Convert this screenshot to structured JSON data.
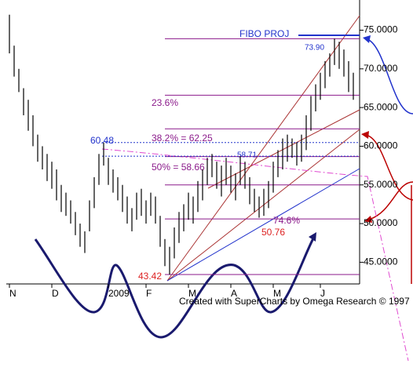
{
  "chart_data": {
    "type": "ohlc",
    "categories": [
      "N",
      null,
      null,
      null,
      null,
      null,
      null,
      null,
      null,
      "D",
      null,
      null,
      null,
      null,
      null,
      null,
      null,
      null,
      null,
      null,
      null,
      "2009",
      null,
      null,
      null,
      null,
      null,
      null,
      null,
      "F",
      null,
      null,
      null,
      null,
      null,
      null,
      null,
      null,
      "M",
      null,
      null,
      null,
      null,
      null,
      null,
      null,
      null,
      "A",
      null,
      null,
      null,
      null,
      null,
      null,
      null,
      null,
      "M",
      null,
      null,
      null,
      null,
      null,
      null,
      null,
      null,
      null,
      "J",
      null,
      null,
      null,
      null,
      null,
      null,
      null
    ],
    "high": [
      77,
      73,
      70,
      67.5,
      66,
      64,
      61.5,
      60,
      59,
      58,
      57,
      55,
      54,
      53,
      51.5,
      50,
      49,
      53,
      56,
      59,
      60.48,
      58.5,
      57,
      56,
      55,
      53.5,
      52,
      54,
      54.5,
      53,
      54,
      53.5,
      51,
      48,
      47,
      49.5,
      51.5,
      52.5,
      54,
      53.5,
      55.5,
      57,
      58.5,
      59,
      58,
      57.5,
      58.5,
      57.5,
      56.5,
      58.71,
      58,
      56,
      54.5,
      53.5,
      54.5,
      55.5,
      58,
      59.5,
      61,
      61.5,
      61,
      60.5,
      61.5,
      64,
      66.5,
      68,
      69.5,
      71,
      72,
      73.9,
      73.5,
      72.5,
      71,
      69.5
    ],
    "low": [
      72,
      69,
      67,
      64,
      62,
      60,
      58,
      57,
      55.5,
      54.5,
      53,
      51.5,
      51,
      50,
      48.5,
      47,
      46.2,
      49,
      52,
      55,
      57.5,
      55,
      54,
      53,
      51.5,
      50,
      49,
      50.5,
      51,
      50,
      51,
      50,
      47,
      44.5,
      43.42,
      45.5,
      47.5,
      49,
      50.5,
      50,
      51.5,
      53,
      55,
      56,
      54.5,
      53.5,
      55,
      54,
      53,
      55,
      54.5,
      52.5,
      51.5,
      50.76,
      51,
      52,
      54,
      56,
      57,
      58,
      58.5,
      57.5,
      58,
      59.5,
      62,
      64.5,
      66,
      67.5,
      69,
      70.5,
      70,
      69,
      67,
      66
    ],
    "color": "#000000",
    "ylim": [
      42.2,
      78.9
    ],
    "yticks": [
      {
        "value": 75,
        "label": "75.0000"
      },
      {
        "value": 70,
        "label": "70.0000"
      },
      {
        "value": 65,
        "label": "65.0000"
      },
      {
        "value": 60,
        "label": "60.0000"
      },
      {
        "value": 55,
        "label": "55.0000"
      },
      {
        "value": 50,
        "label": "50.0000"
      },
      {
        "value": 45,
        "label": "45.0000"
      }
    ],
    "fib_levels": [
      73.9,
      66.6,
      62.25,
      58.66,
      55,
      50.6,
      43.42
    ],
    "fib_color": "#8b1a8b",
    "dotted_levels": [
      60.48,
      58.71
    ],
    "dotted_color": "#2233cc",
    "annotations": {
      "fibo": "FIBO PROJ",
      "high": "73.90",
      "peak": "60.48",
      "mid": "58.71",
      "low": "43.42",
      "pivot": "50.76",
      "f236": "23.6%",
      "f382": "38.2% = 62.25",
      "f50": "50% = 58.66",
      "f746": "74.6%",
      "credit": "Created with SuperCharts by Omega Research © 1997"
    }
  }
}
